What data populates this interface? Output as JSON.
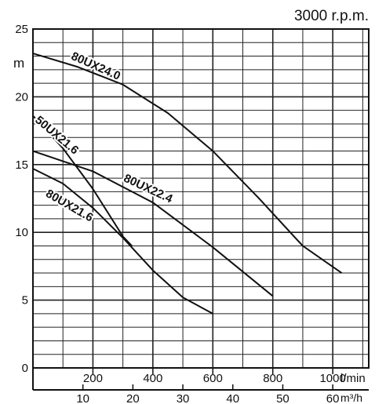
{
  "chart_data": {
    "type": "line",
    "title": "3000 r.p.m.",
    "ylabel": "m",
    "xlabel": "l/min",
    "x2label": "m³/h",
    "ylim": [
      0,
      25
    ],
    "xlim": [
      0,
      1120
    ],
    "yticks": [
      {
        "value": 0,
        "label": "0"
      },
      {
        "value": 5,
        "label": "5"
      },
      {
        "value": 10,
        "label": "10"
      },
      {
        "value": 15,
        "label": "15"
      },
      {
        "value": 20,
        "label": "20"
      },
      {
        "value": 25,
        "label": "25"
      }
    ],
    "xticks": [
      {
        "value": 200,
        "label": "200"
      },
      {
        "value": 400,
        "label": "400"
      },
      {
        "value": 600,
        "label": "600"
      },
      {
        "value": 800,
        "label": "800"
      },
      {
        "value": 1000,
        "label": "1000"
      }
    ],
    "x2ticks": [
      {
        "value": 10,
        "label": "10"
      },
      {
        "value": 20,
        "label": "20"
      },
      {
        "value": 30,
        "label": "30"
      },
      {
        "value": 40,
        "label": "40"
      },
      {
        "value": 50,
        "label": "50"
      },
      {
        "value": 60,
        "label": "60"
      }
    ],
    "grid": true,
    "series": [
      {
        "name": "80UX24.0",
        "x": [
          0,
          150,
          300,
          450,
          600,
          750,
          900,
          1030
        ],
        "y": [
          23.2,
          22.2,
          20.9,
          18.8,
          16.0,
          12.6,
          9.0,
          7.0
        ]
      },
      {
        "name": "50UX21.6",
        "x": [
          0,
          100,
          200,
          300,
          330
        ],
        "y": [
          18.6,
          16.2,
          13.2,
          9.7,
          9.0
        ]
      },
      {
        "name": "80UX22.4",
        "x": [
          0,
          200,
          400,
          600,
          800
        ],
        "y": [
          16.0,
          14.5,
          12.2,
          8.9,
          5.3
        ]
      },
      {
        "name": "80UX21.6",
        "x": [
          0,
          100,
          200,
          300,
          400,
          500,
          600
        ],
        "y": [
          14.7,
          13.6,
          11.8,
          9.6,
          7.2,
          5.2,
          4.0
        ]
      }
    ]
  }
}
